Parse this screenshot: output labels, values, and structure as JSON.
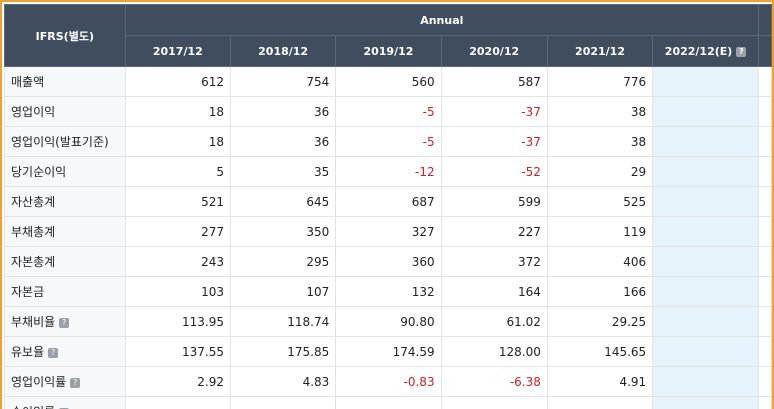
{
  "table": {
    "corner": "IFRS(별도)",
    "group": "Annual",
    "columns": [
      "2017/12",
      "2018/12",
      "2019/12",
      "2020/12",
      "2021/12",
      "2022/12(E)"
    ],
    "estimate_help": true,
    "rows": [
      {
        "label": "매출액",
        "values": [
          "612",
          "754",
          "560",
          "587",
          "776"
        ]
      },
      {
        "label": "영업이익",
        "values": [
          "18",
          "36",
          "-5",
          "-37",
          "38"
        ]
      },
      {
        "label": "영업이익(발표기준)",
        "values": [
          "18",
          "36",
          "-5",
          "-37",
          "38"
        ]
      },
      {
        "label": "당기순이익",
        "values": [
          "5",
          "35",
          "-12",
          "-52",
          "29"
        ]
      },
      {
        "label": "자산총계",
        "values": [
          "521",
          "645",
          "687",
          "599",
          "525"
        ]
      },
      {
        "label": "부채총계",
        "values": [
          "277",
          "350",
          "327",
          "227",
          "119"
        ]
      },
      {
        "label": "자본총계",
        "values": [
          "243",
          "295",
          "360",
          "372",
          "406"
        ]
      },
      {
        "label": "자본금",
        "values": [
          "103",
          "107",
          "132",
          "164",
          "166"
        ]
      },
      {
        "label": "부채비율",
        "help": true,
        "values": [
          "113.95",
          "118.74",
          "90.80",
          "61.02",
          "29.25"
        ]
      },
      {
        "label": "유보율",
        "help": true,
        "values": [
          "137.55",
          "175.85",
          "174.59",
          "128.00",
          "145.65"
        ]
      },
      {
        "label": "영업이익률",
        "help": true,
        "values": [
          "2.92",
          "4.83",
          "-0.83",
          "-6.38",
          "4.91"
        ]
      },
      {
        "label": "순이익률",
        "help": true,
        "values": []
      }
    ]
  }
}
